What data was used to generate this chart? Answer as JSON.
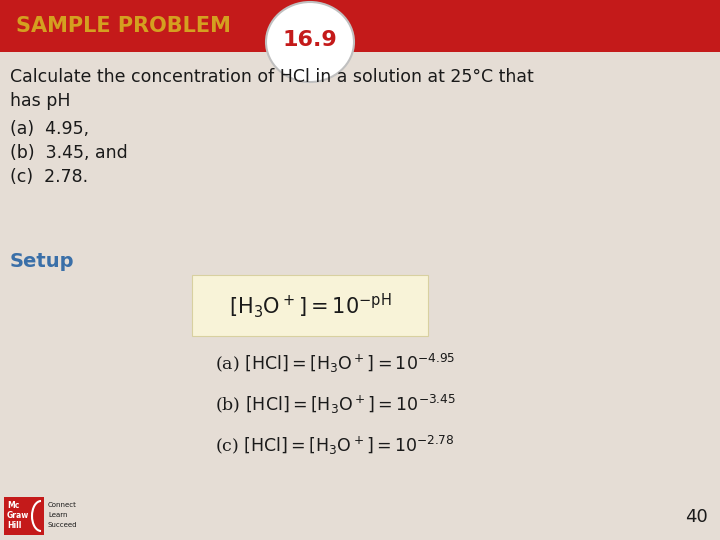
{
  "bg_color": "#e5ddd5",
  "header_bg": "#c41a1a",
  "header_text": "SAMPLE PROBLEM",
  "header_text_color": "#d4a020",
  "number_text": "16.9",
  "number_text_color": "#c41a1a",
  "oval_fill": "#ffffff",
  "oval_border": "#c0c0c0",
  "title_line1": "Calculate the concentration of HCl in a solution at 25°C that",
  "title_line2": "has pH",
  "item_a": "(a)  4.95,",
  "item_b": "(b)  3.45, and",
  "item_c": "(c)  2.78.",
  "setup_text": "Setup",
  "setup_color": "#3a6fa8",
  "formula_box_color": "#f8f3d8",
  "formula_box_border": "#d8d0a0",
  "page_number": "40",
  "text_color": "#1a1a1a",
  "logo_red": "#c41a1a"
}
